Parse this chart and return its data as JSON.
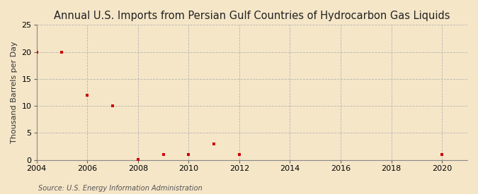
{
  "title": "Annual U.S. Imports from Persian Gulf Countries of Hydrocarbon Gas Liquids",
  "ylabel": "Thousand Barrels per Day",
  "source": "Source: U.S. Energy Information Administration",
  "background_color": "#f5e6c8",
  "plot_background_color": "#f5e6c8",
  "x_data": [
    2004,
    2005,
    2006,
    2007,
    2008,
    2009,
    2010,
    2011,
    2012,
    2020
  ],
  "y_data": [
    20,
    20,
    12,
    10,
    0.1,
    1,
    1,
    3,
    1,
    1
  ],
  "marker_color": "#cc0000",
  "marker": "s",
  "marker_size": 3.5,
  "xlim": [
    2004,
    2021
  ],
  "ylim": [
    0,
    25
  ],
  "yticks": [
    0,
    5,
    10,
    15,
    20,
    25
  ],
  "xticks": [
    2004,
    2006,
    2008,
    2010,
    2012,
    2014,
    2016,
    2018,
    2020
  ],
  "grid_color": "#b0b0b0",
  "title_fontsize": 10.5,
  "axis_fontsize": 8,
  "source_fontsize": 7
}
